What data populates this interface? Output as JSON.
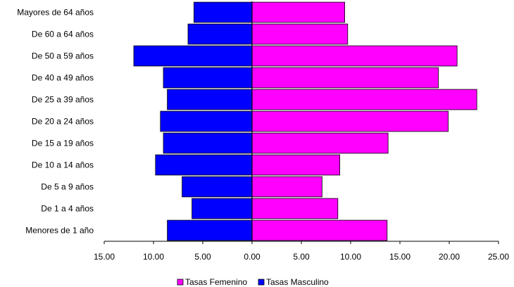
{
  "chart_data": {
    "type": "bar",
    "orientation": "horizontal",
    "layout": "population-pyramid",
    "categories": [
      "Mayores de 64 años",
      "De 60 a 64 años",
      "De 50 a 59 años",
      "De 40 a 49 años",
      "De 25 a 39 años",
      "De 20 a 24 años",
      "De 15 a 19 años",
      "De 10 a 14 años",
      "De 5 a 9 años",
      "De 1 a 4 años",
      "Menores de 1 año"
    ],
    "series": [
      {
        "name": "Tasas Femenino",
        "color": "#ff00ff",
        "values": [
          9.4,
          9.7,
          20.8,
          18.9,
          22.8,
          19.9,
          13.8,
          8.9,
          7.1,
          8.7,
          13.7
        ]
      },
      {
        "name": "Tasas Masculino",
        "color": "#0000ff",
        "values": [
          5.9,
          6.5,
          12.0,
          9.0,
          8.6,
          9.3,
          9.0,
          9.8,
          7.1,
          6.1,
          8.6
        ]
      }
    ],
    "xlim": [
      -15,
      25
    ],
    "xticks": [
      "15.00",
      "10.00",
      "5.00",
      "0.00",
      "5.00",
      "10.00",
      "15.00",
      "20.00",
      "25.00"
    ],
    "legend_position": "bottom-center",
    "grid": false
  }
}
